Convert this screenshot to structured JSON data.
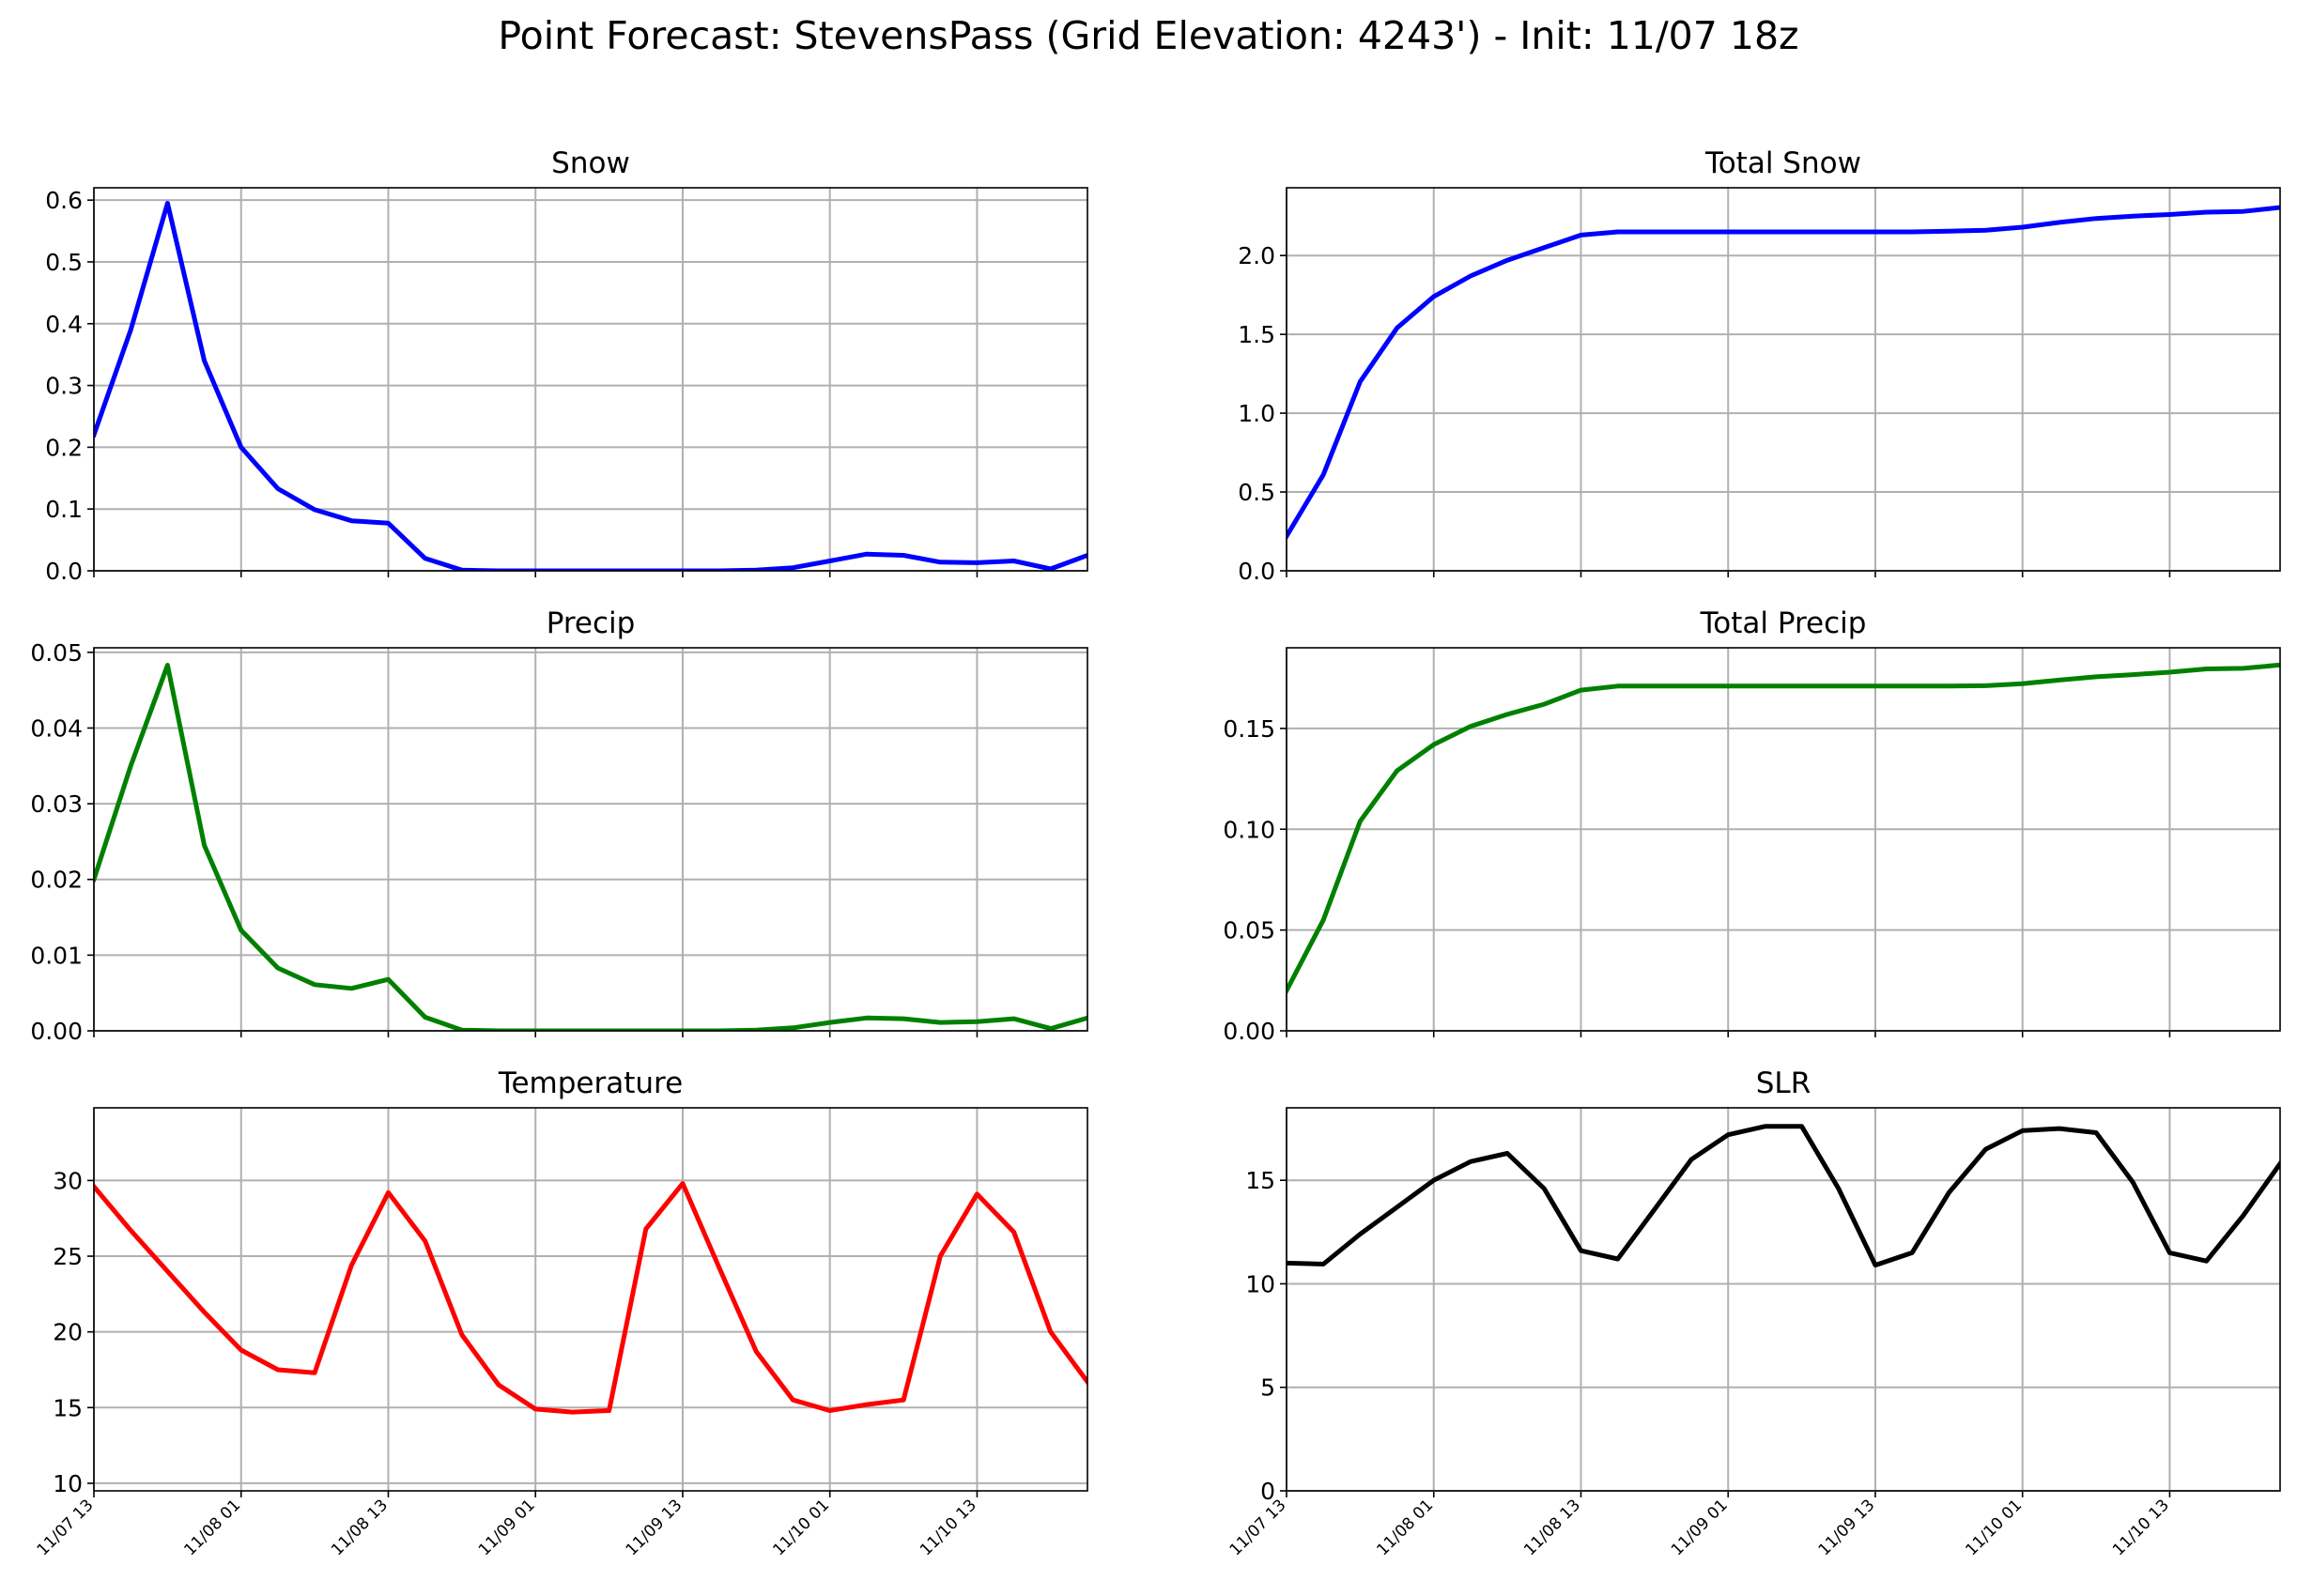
{
  "figure": {
    "title": "Point Forecast: StevensPass (Grid Elevation: 4243') - Init: 11/07 18z"
  },
  "x_tick_labels": [
    "11/07 13",
    "11/08 01",
    "11/08 13",
    "11/09 01",
    "11/09 13",
    "11/10 01",
    "11/10 13"
  ],
  "chart_data": [
    {
      "type": "line",
      "title": "Snow",
      "x_hours": [
        0,
        3,
        6,
        9,
        12,
        15,
        18,
        21,
        24,
        27,
        30,
        33,
        36,
        39,
        42,
        45,
        48,
        51,
        54,
        57,
        60,
        63,
        66,
        69,
        72,
        75,
        78,
        81
      ],
      "xlim": [
        0,
        81
      ],
      "series": [
        {
          "color": "#0000ff",
          "values": [
            0.22,
            0.39,
            0.595,
            0.34,
            0.2,
            0.133,
            0.099,
            0.081,
            0.077,
            0.02,
            0.001,
            0.0,
            0.0,
            0.0,
            0.0,
            0.0,
            0.0,
            0.0,
            0.001,
            0.005,
            0.016,
            0.027,
            0.025,
            0.014,
            0.013,
            0.016,
            0.003,
            0.025
          ]
        }
      ],
      "ylim": [
        0,
        0.62
      ],
      "yticks": [
        0.0,
        0.1,
        0.2,
        0.3,
        0.4,
        0.5,
        0.6
      ],
      "ytick_labels": [
        "0.0",
        "0.1",
        "0.2",
        "0.3",
        "0.4",
        "0.5",
        "0.6"
      ],
      "grid": true
    },
    {
      "type": "line",
      "title": "Total Snow",
      "x_hours": [
        0,
        3,
        6,
        9,
        12,
        15,
        18,
        21,
        24,
        27,
        30,
        33,
        36,
        39,
        42,
        45,
        48,
        51,
        54,
        57,
        60,
        63,
        66,
        69,
        72,
        75,
        78,
        81
      ],
      "xlim": [
        0,
        81
      ],
      "series": [
        {
          "color": "#0000ff",
          "values": [
            0.22,
            0.61,
            1.2,
            1.54,
            1.74,
            1.87,
            1.97,
            2.05,
            2.13,
            2.15,
            2.15,
            2.15,
            2.15,
            2.15,
            2.15,
            2.15,
            2.15,
            2.15,
            2.155,
            2.16,
            2.18,
            2.21,
            2.235,
            2.25,
            2.26,
            2.275,
            2.28,
            2.305
          ]
        }
      ],
      "ylim": [
        0,
        2.43
      ],
      "yticks": [
        0.0,
        0.5,
        1.0,
        1.5,
        2.0
      ],
      "ytick_labels": [
        "0.0",
        "0.5",
        "1.0",
        "1.5",
        "2.0"
      ],
      "grid": true
    },
    {
      "type": "line",
      "title": "Precip",
      "x_hours": [
        0,
        3,
        6,
        9,
        12,
        15,
        18,
        21,
        24,
        27,
        30,
        33,
        36,
        39,
        42,
        45,
        48,
        51,
        54,
        57,
        60,
        63,
        66,
        69,
        72,
        75,
        78,
        81
      ],
      "xlim": [
        0,
        81
      ],
      "series": [
        {
          "color": "#008000",
          "values": [
            0.02,
            0.035,
            0.0483,
            0.0245,
            0.0133,
            0.0083,
            0.0061,
            0.0056,
            0.0068,
            0.0018,
            0.0001,
            0.0,
            0.0,
            0.0,
            0.0,
            0.0,
            0.0,
            0.0,
            0.0001,
            0.0004,
            0.0011,
            0.0017,
            0.0016,
            0.0011,
            0.0012,
            0.0016,
            0.0003,
            0.0017
          ]
        }
      ],
      "ylim": [
        0,
        0.0506
      ],
      "yticks": [
        0.0,
        0.01,
        0.02,
        0.03,
        0.04,
        0.05
      ],
      "ytick_labels": [
        "0.00",
        "0.01",
        "0.02",
        "0.03",
        "0.04",
        "0.05"
      ],
      "grid": true
    },
    {
      "type": "line",
      "title": "Total Precip",
      "x_hours": [
        0,
        3,
        6,
        9,
        12,
        15,
        18,
        21,
        24,
        27,
        30,
        33,
        36,
        39,
        42,
        45,
        48,
        51,
        54,
        57,
        60,
        63,
        66,
        69,
        72,
        75,
        78,
        81
      ],
      "xlim": [
        0,
        81
      ],
      "series": [
        {
          "color": "#008000",
          "values": [
            0.02,
            0.055,
            0.104,
            0.129,
            0.142,
            0.151,
            0.157,
            0.162,
            0.169,
            0.171,
            0.171,
            0.171,
            0.171,
            0.171,
            0.171,
            0.171,
            0.171,
            0.171,
            0.171,
            0.1712,
            0.1722,
            0.174,
            0.1756,
            0.1767,
            0.1779,
            0.1795,
            0.1798,
            0.1815
          ]
        }
      ],
      "ylim": [
        0,
        0.19
      ],
      "yticks": [
        0.0,
        0.05,
        0.1,
        0.15
      ],
      "ytick_labels": [
        "0.00",
        "0.05",
        "0.10",
        "0.15"
      ],
      "grid": true
    },
    {
      "type": "line",
      "title": "Temperature",
      "x_hours": [
        0,
        3,
        6,
        9,
        12,
        15,
        18,
        21,
        24,
        27,
        30,
        33,
        36,
        39,
        42,
        45,
        48,
        51,
        54,
        57,
        60,
        63,
        66,
        69,
        72,
        75,
        78,
        81
      ],
      "xlim": [
        0,
        81
      ],
      "series": [
        {
          "color": "#ff0000",
          "values": [
            29.6,
            26.7,
            24.0,
            21.3,
            18.8,
            17.5,
            17.3,
            24.4,
            29.2,
            26.0,
            19.8,
            16.5,
            14.9,
            14.7,
            14.8,
            26.8,
            29.8,
            24.2,
            18.7,
            15.5,
            14.8,
            15.2,
            15.5,
            25.0,
            29.1,
            26.6,
            20.0,
            16.7
          ]
        }
      ],
      "ylim": [
        9.5,
        34.8
      ],
      "yticks": [
        10,
        15,
        20,
        25,
        30
      ],
      "ytick_labels": [
        "10",
        "15",
        "20",
        "25",
        "30"
      ],
      "grid": true
    },
    {
      "type": "line",
      "title": "SLR",
      "x_hours": [
        0,
        3,
        6,
        9,
        12,
        15,
        18,
        21,
        24,
        27,
        30,
        33,
        36,
        39,
        42,
        45,
        48,
        51,
        54,
        57,
        60,
        63,
        66,
        69,
        72,
        75,
        78,
        81
      ],
      "xlim": [
        0,
        81
      ],
      "series": [
        {
          "color": "#000000",
          "values": [
            11.0,
            10.95,
            12.4,
            13.7,
            15.0,
            15.9,
            16.3,
            14.6,
            11.6,
            11.2,
            13.6,
            16.0,
            17.2,
            17.6,
            17.6,
            14.6,
            10.9,
            11.5,
            14.4,
            16.5,
            17.4,
            17.5,
            17.3,
            14.9,
            11.5,
            11.1,
            13.3,
            15.8
          ]
        }
      ],
      "ylim": [
        0,
        18.5
      ],
      "yticks": [
        0,
        5,
        10,
        15
      ],
      "ytick_labels": [
        "0",
        "5",
        "10",
        "15"
      ],
      "grid": true
    }
  ]
}
